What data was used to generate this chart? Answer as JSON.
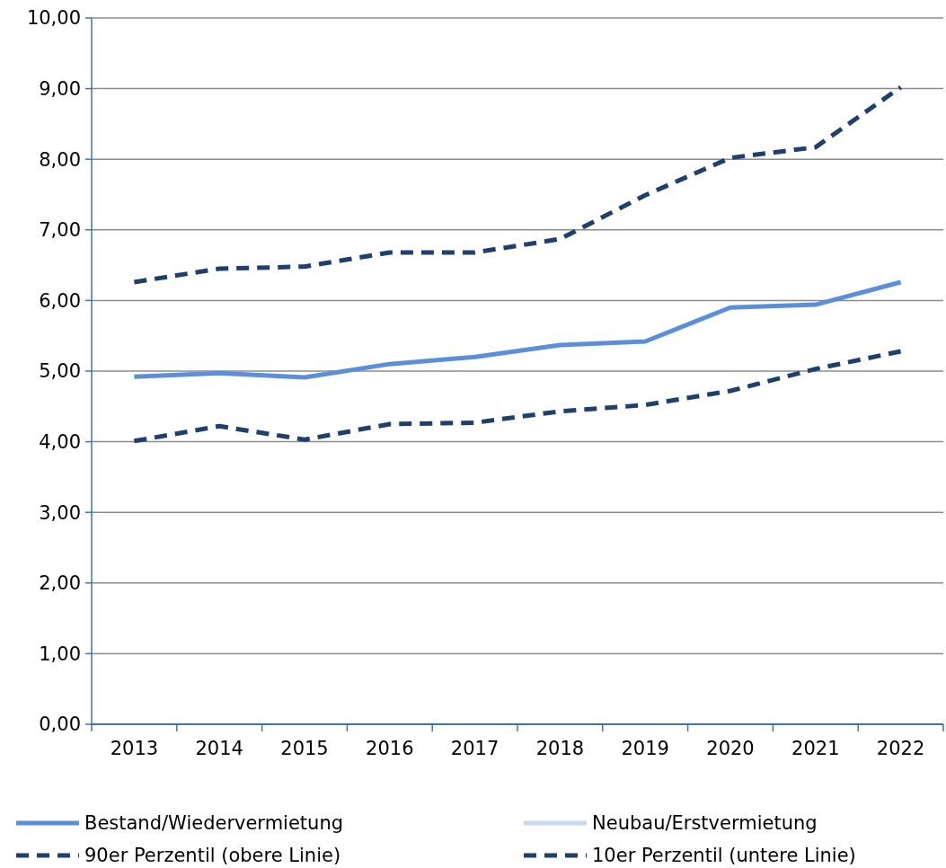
{
  "chart_data": {
    "type": "line",
    "categories": [
      "2013",
      "2014",
      "2015",
      "2016",
      "2017",
      "2018",
      "2019",
      "2020",
      "2021",
      "2022"
    ],
    "ylim": [
      0,
      10
    ],
    "yticks": [
      {
        "value": 0,
        "label": "0,00"
      },
      {
        "value": 1,
        "label": "1,00"
      },
      {
        "value": 2,
        "label": "2,00"
      },
      {
        "value": 3,
        "label": "3,00"
      },
      {
        "value": 4,
        "label": "4,00"
      },
      {
        "value": 5,
        "label": "5,00"
      },
      {
        "value": 6,
        "label": "6,00"
      },
      {
        "value": 7,
        "label": "7,00"
      },
      {
        "value": 8,
        "label": "8,00"
      },
      {
        "value": 9,
        "label": "9,00"
      },
      {
        "value": 10,
        "label": "10,00"
      }
    ],
    "grid": "y",
    "legend": "bottom",
    "marker": "none",
    "series": [
      {
        "name": "Bestand/Wiedervermietung",
        "color": "#5b8fd9",
        "line_style": "solid",
        "values": [
          4.92,
          4.97,
          4.91,
          5.1,
          5.2,
          5.37,
          5.42,
          5.9,
          5.94,
          6.26
        ]
      },
      {
        "name": "Neubau/Erstvermietung",
        "color": "#c5d9f1",
        "line_style": "solid",
        "values": [
          null,
          null,
          null,
          null,
          null,
          null,
          null,
          null,
          null,
          null
        ]
      },
      {
        "name": "90er Perzentil (obere Linie)",
        "color": "#1f3f6e",
        "line_style": "dashed",
        "values": [
          6.26,
          6.45,
          6.48,
          6.68,
          6.68,
          6.87,
          7.49,
          8.02,
          8.17,
          9.02
        ]
      },
      {
        "name": "10er Perzentil (untere Linie)",
        "color": "#1f3f6e",
        "line_style": "dashed",
        "values": [
          4.01,
          4.22,
          4.03,
          4.25,
          4.27,
          4.43,
          4.52,
          4.72,
          5.03,
          5.28
        ]
      }
    ]
  }
}
